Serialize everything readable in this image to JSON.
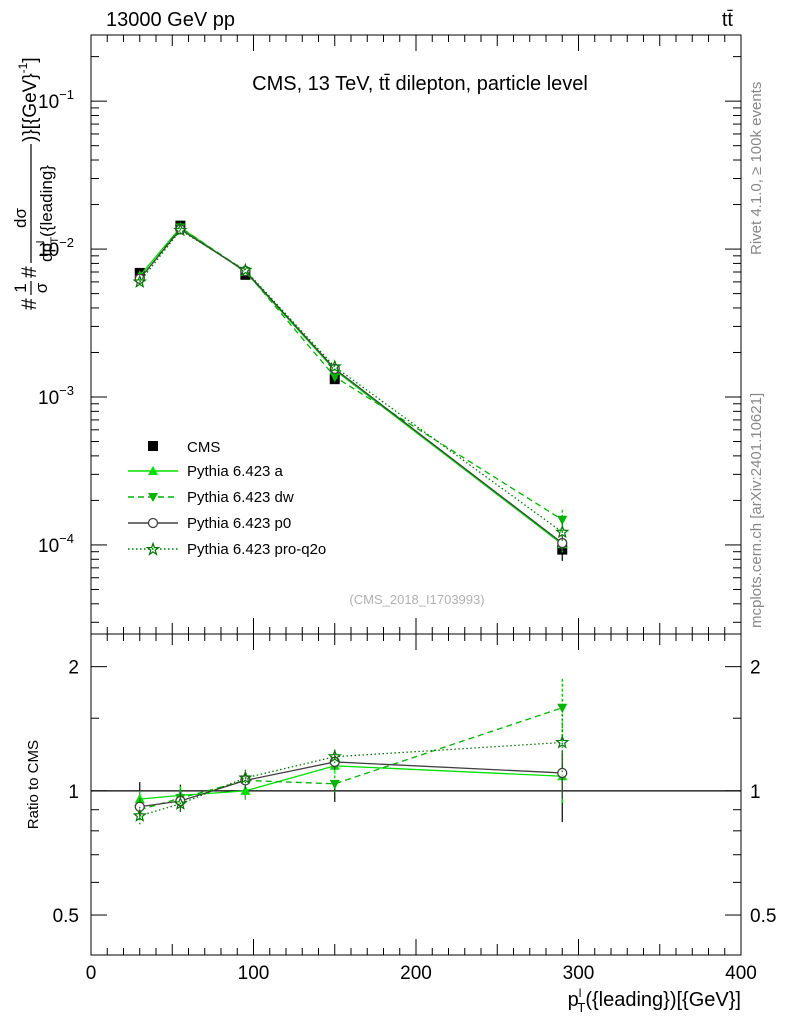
{
  "header": {
    "left_label": "13000 GeV pp",
    "right_label": "tt̄"
  },
  "side_labels": {
    "rivet": "Rivet 4.1.0, ≥ 100k events",
    "mcplots": "mcplots.cern.ch [arXiv:2401.10621]"
  },
  "chart_data": [
    {
      "type": "line",
      "yscale": "log",
      "title": "CMS, 13 TeV, tt̄ dilepton, particle level",
      "watermark": "(CMS_2018_I1703993)",
      "ylabel": "#1/σ# dσ/dp_T^l({leading})[{GeV}^-1]",
      "ylabel_parts": {
        "prefix": "#",
        "one": "1",
        "sigma": "σ",
        "hash": "#",
        "dsigma": "dσ",
        "dp": "dp",
        "dp_sup": "l",
        "dp_sub": "T",
        "dp_arg": "({leading}",
        "suffix": ")}[{GeV}",
        "suffix_sup": "-1",
        "suffix_end": "]"
      },
      "xlim": [
        0,
        400
      ],
      "ylim": [
        2.5e-05,
        0.28
      ],
      "y_ticks": [
        {
          "v": 0.0001,
          "base": "10",
          "exp": "−4"
        },
        {
          "v": 0.001,
          "base": "10",
          "exp": "−3"
        },
        {
          "v": 0.01,
          "base": "10",
          "exp": "−2"
        },
        {
          "v": 0.1,
          "base": "10",
          "exp": "−1"
        }
      ],
      "x": [
        30,
        55,
        95,
        150,
        290
      ],
      "series": [
        {
          "name": "CMS",
          "style": "data",
          "color": "#000000",
          "marker": "square",
          "values": [
            0.0069,
            0.0144,
            0.0067,
            0.00132,
            9.3e-05
          ],
          "errors": [
            0.00035,
            0.0005,
            0.00025,
            8e-05,
            1.5e-05
          ]
        },
        {
          "name": "Pythia 6.423 a",
          "style": "solid",
          "color": "#00e000",
          "marker": "triangle-up",
          "values": [
            0.0066,
            0.014,
            0.007,
            0.00152,
            0.000101
          ],
          "errors": [
            0.00025,
            0.0004,
            0.0002,
            6e-05,
            1.2e-05
          ]
        },
        {
          "name": "Pythia 6.423 dw",
          "style": "dashed",
          "color": "#00b400",
          "marker": "triangle-down",
          "values": [
            0.0062,
            0.014,
            0.0071,
            0.00137,
            0.000148
          ],
          "errors": [
            0.00025,
            0.0004,
            0.0002,
            6e-05,
            2.5e-05
          ]
        },
        {
          "name": "Pythia 6.423 p0",
          "style": "solid",
          "color": "#404040",
          "marker": "circle",
          "values": [
            0.0063,
            0.0136,
            0.0071,
            0.00155,
            0.000103
          ],
          "errors": [
            0.00025,
            0.0004,
            0.0002,
            6e-05,
            1.2e-05
          ]
        },
        {
          "name": "Pythia 6.423 pro-q2o",
          "style": "dotted",
          "color": "#007800",
          "marker": "star",
          "values": [
            0.006,
            0.0134,
            0.0072,
            0.0016,
            0.000122
          ],
          "errors": [
            0.00025,
            0.0004,
            0.0002,
            6e-05,
            1.8e-05
          ]
        }
      ]
    },
    {
      "type": "line",
      "yscale": "log",
      "ylabel": "Ratio to CMS",
      "xlabel": "p_T^l({leading})[{GeV}]",
      "xlabel_parts": {
        "p": "p",
        "sub": "T",
        "sup": "l",
        "rest": "({leading})[{GeV}]"
      },
      "xlim": [
        0,
        400
      ],
      "ylim": [
        0.4,
        2.4
      ],
      "x_ticks": [
        0,
        100,
        200,
        300,
        400
      ],
      "y_ticks": [
        {
          "v": 0.5,
          "label": "0.5"
        },
        {
          "v": 1,
          "label": "1"
        },
        {
          "v": 2,
          "label": "2"
        }
      ],
      "reference": 1,
      "x": [
        30,
        55,
        95,
        150,
        290
      ],
      "series": [
        {
          "name": "Pythia 6.423 a",
          "values": [
            0.955,
            0.975,
            1.0,
            1.15,
            1.085
          ],
          "errors": [
            0.045,
            0.05,
            0.05,
            0.05,
            0.15
          ]
        },
        {
          "name": "Pythia 6.423 dw",
          "values": [
            0.9,
            0.96,
            1.06,
            1.04,
            1.59
          ],
          "errors": [
            0.045,
            0.05,
            0.05,
            0.05,
            0.28
          ]
        },
        {
          "name": "Pythia 6.423 p0",
          "values": [
            0.915,
            0.945,
            1.06,
            1.175,
            1.105
          ],
          "errors": [
            0.045,
            0.05,
            0.05,
            0.05,
            0.15
          ]
        },
        {
          "name": "Pythia 6.423 pro-q2o",
          "values": [
            0.87,
            0.93,
            1.075,
            1.21,
            1.31
          ],
          "errors": [
            0.045,
            0.05,
            0.05,
            0.05,
            0.22
          ]
        }
      ],
      "reference_band": {
        "values": [
          1,
          1,
          1,
          1,
          1
        ],
        "errors": [
          0.05,
          0.035,
          0.04,
          0.06,
          0.16
        ]
      }
    }
  ]
}
